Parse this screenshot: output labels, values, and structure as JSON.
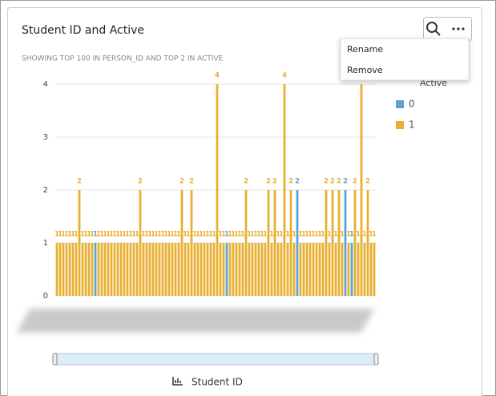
{
  "chart_data": {
    "type": "bar",
    "title": "Student ID and Active",
    "subtitle": "SHOWING TOP 100 IN PERSON_ID AND TOP 2 IN ACTIVE",
    "x_label": "Student ID",
    "legend_title": "Active",
    "ylim": [
      0,
      4
    ],
    "yticks": [
      0,
      1,
      2,
      3,
      4
    ],
    "grid": true,
    "series": [
      {
        "name": "0",
        "color": "#5ba4cf",
        "values": [
          null,
          null,
          null,
          null,
          null,
          null,
          null,
          null,
          null,
          null,
          null,
          null,
          1,
          null,
          null,
          null,
          null,
          null,
          null,
          null,
          null,
          null,
          null,
          null,
          null,
          null,
          null,
          null,
          null,
          null,
          null,
          null,
          null,
          null,
          null,
          null,
          null,
          null,
          null,
          null,
          null,
          null,
          null,
          null,
          null,
          null,
          null,
          null,
          null,
          null,
          null,
          null,
          null,
          1,
          null,
          null,
          null,
          null,
          null,
          null,
          null,
          null,
          null,
          null,
          null,
          null,
          null,
          null,
          null,
          null,
          null,
          null,
          null,
          null,
          null,
          2,
          null,
          null,
          null,
          null,
          null,
          null,
          null,
          null,
          null,
          null,
          null,
          null,
          null,
          null,
          2,
          null,
          1,
          null,
          null,
          null,
          null,
          null,
          null,
          null
        ]
      },
      {
        "name": "1",
        "color": "#e8b030",
        "values": [
          1,
          1,
          1,
          1,
          1,
          1,
          1,
          2,
          1,
          1,
          1,
          1,
          null,
          1,
          1,
          1,
          1,
          1,
          1,
          1,
          1,
          1,
          1,
          1,
          1,
          1,
          2,
          1,
          1,
          1,
          1,
          1,
          1,
          1,
          1,
          1,
          1,
          1,
          1,
          2,
          1,
          1,
          2,
          1,
          1,
          1,
          1,
          1,
          1,
          1,
          4,
          1,
          1,
          null,
          1,
          1,
          1,
          1,
          1,
          2,
          1,
          1,
          1,
          1,
          1,
          1,
          2,
          1,
          2,
          1,
          1,
          4,
          1,
          2,
          1,
          null,
          1,
          1,
          1,
          1,
          1,
          1,
          1,
          1,
          2,
          1,
          2,
          1,
          2,
          1,
          null,
          1,
          null,
          2,
          1,
          4,
          1,
          2,
          1,
          1
        ]
      }
    ]
  },
  "menu": [
    "Rename",
    "Remove"
  ]
}
